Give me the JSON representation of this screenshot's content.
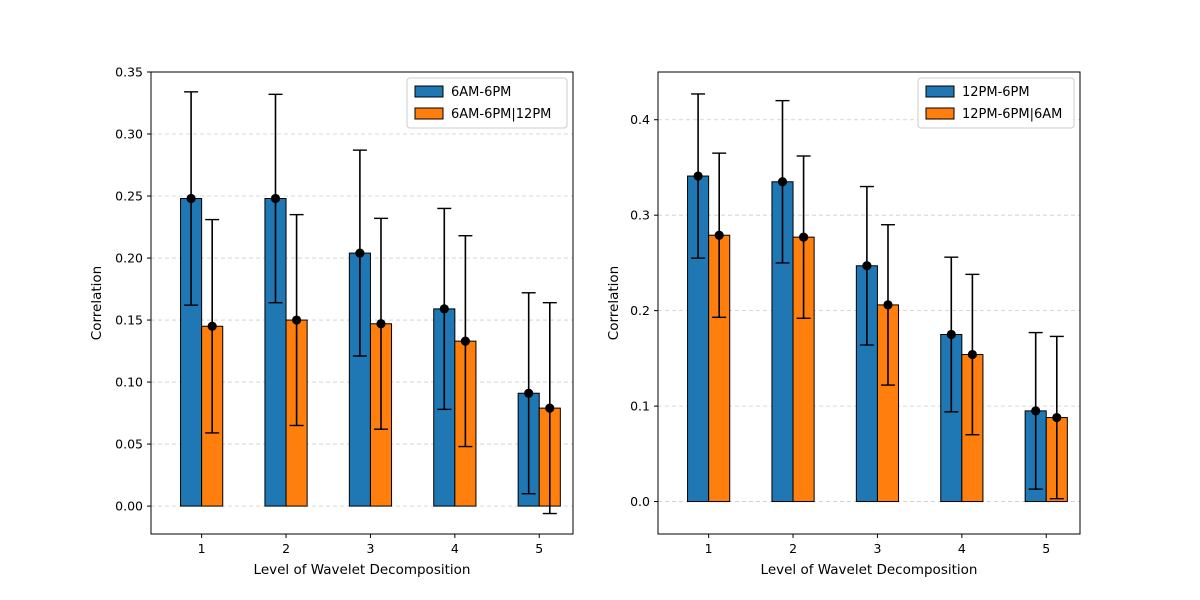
{
  "colors": {
    "series1": "#1f77b4",
    "series2": "#ff7f0e",
    "errorbar": "#000000",
    "grid": "#cccccc"
  },
  "chart_data": [
    {
      "type": "bar",
      "title": "",
      "xlabel": "Level of Wavelet Decomposition",
      "ylabel": "Correlation",
      "categories": [
        "1",
        "2",
        "3",
        "4",
        "5"
      ],
      "ylim": [
        -0.0225,
        0.35
      ],
      "yticks": [
        0.0,
        0.05,
        0.1,
        0.15,
        0.2,
        0.25,
        0.3,
        0.35
      ],
      "ytick_labels": [
        "0.00",
        "0.05",
        "0.10",
        "0.15",
        "0.20",
        "0.25",
        "0.30",
        "0.35"
      ],
      "grid": "y-dashed",
      "legend_position": "top-right",
      "series": [
        {
          "name": "6AM-6PM",
          "values": [
            0.248,
            0.248,
            0.204,
            0.159,
            0.091
          ],
          "errors": [
            0.086,
            0.084,
            0.083,
            0.081,
            0.081
          ]
        },
        {
          "name": "6AM-6PM|12PM",
          "values": [
            0.145,
            0.15,
            0.147,
            0.133,
            0.079
          ],
          "errors": [
            0.086,
            0.085,
            0.085,
            0.085,
            0.085
          ]
        }
      ]
    },
    {
      "type": "bar",
      "title": "",
      "xlabel": "Level of Wavelet Decomposition",
      "ylabel": "Correlation",
      "categories": [
        "1",
        "2",
        "3",
        "4",
        "5"
      ],
      "ylim": [
        -0.034,
        0.45
      ],
      "yticks": [
        0.0,
        0.1,
        0.2,
        0.3,
        0.4
      ],
      "ytick_labels": [
        "0.0",
        "0.1",
        "0.2",
        "0.3",
        "0.4"
      ],
      "grid": "y-dashed",
      "legend_position": "top-right",
      "series": [
        {
          "name": "12PM-6PM",
          "values": [
            0.341,
            0.335,
            0.247,
            0.175,
            0.095
          ],
          "errors": [
            0.086,
            0.085,
            0.083,
            0.081,
            0.082
          ]
        },
        {
          "name": "12PM-6PM|6AM",
          "values": [
            0.279,
            0.277,
            0.206,
            0.154,
            0.088
          ],
          "errors": [
            0.086,
            0.085,
            0.084,
            0.084,
            0.085
          ]
        }
      ]
    }
  ]
}
